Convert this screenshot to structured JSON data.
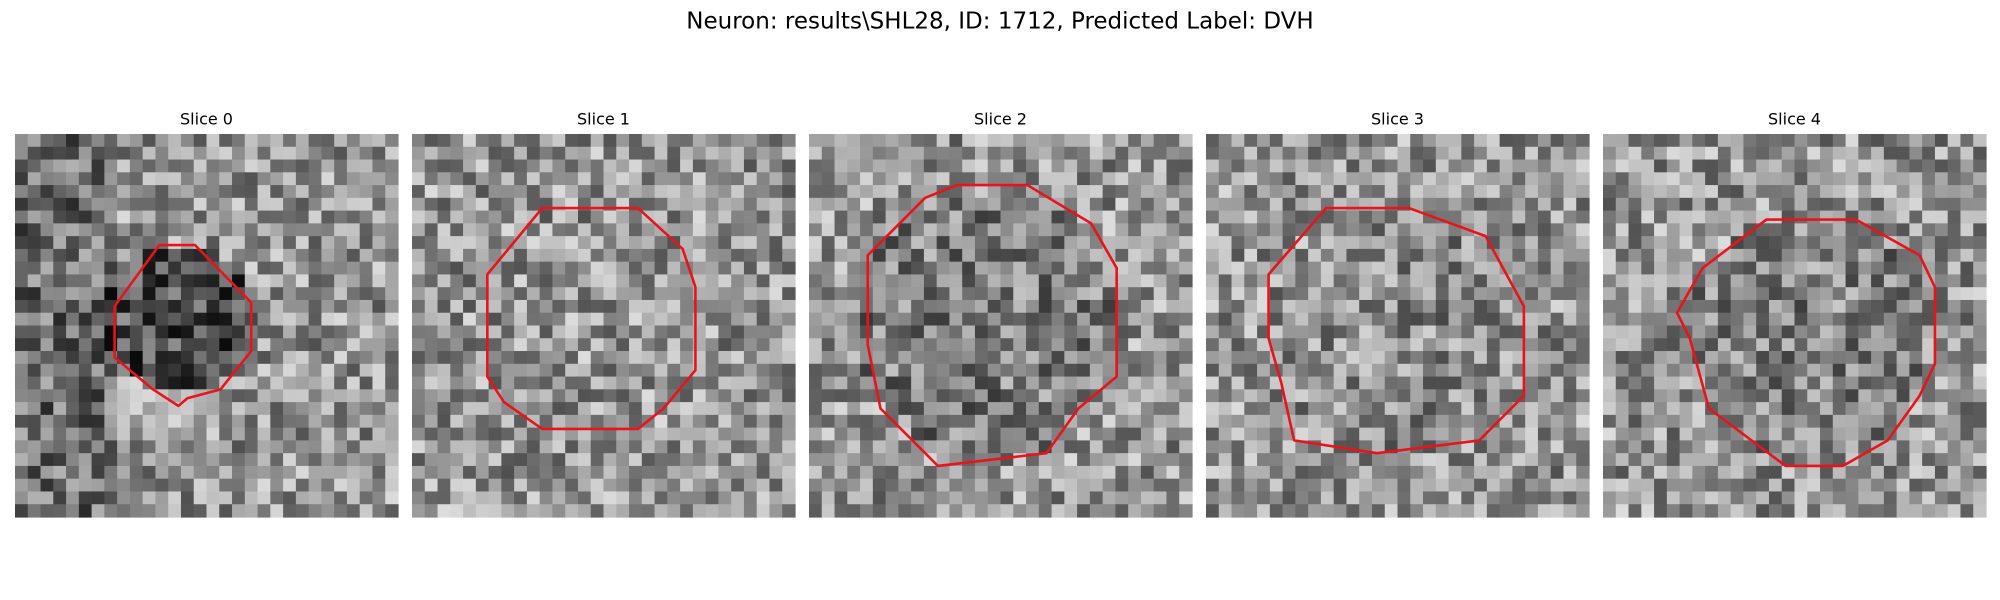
{
  "title": "Neuron: results\\SHL28, ID: 1712, Predicted Label: DVH",
  "panels": [
    {
      "title": "Slice 0"
    },
    {
      "title": "Slice 1"
    },
    {
      "title": "Slice 2"
    },
    {
      "title": "Slice 3"
    },
    {
      "title": "Slice 4"
    }
  ]
}
